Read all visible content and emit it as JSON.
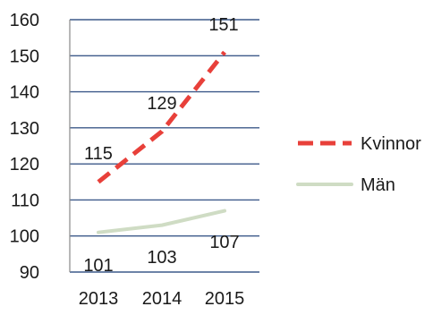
{
  "chart_data": {
    "type": "line",
    "categories": [
      "2013",
      "2014",
      "2015"
    ],
    "series": [
      {
        "name": "Kvinnor",
        "values": [
          115,
          129,
          151
        ],
        "color": "#e8403a",
        "style": "dashed",
        "data_labels": [
          "115",
          "129",
          "151"
        ]
      },
      {
        "name": "Män",
        "values": [
          101,
          103,
          107
        ],
        "color": "#cfdcc4",
        "style": "solid",
        "data_labels": [
          "101",
          "103",
          "107"
        ]
      }
    ],
    "y_ticks": [
      "160",
      "150",
      "140",
      "130",
      "120",
      "110",
      "100",
      "90"
    ],
    "ylim": [
      90,
      160
    ],
    "grid": true,
    "legend_position": "right",
    "title": "",
    "xlabel": "",
    "ylabel": ""
  }
}
